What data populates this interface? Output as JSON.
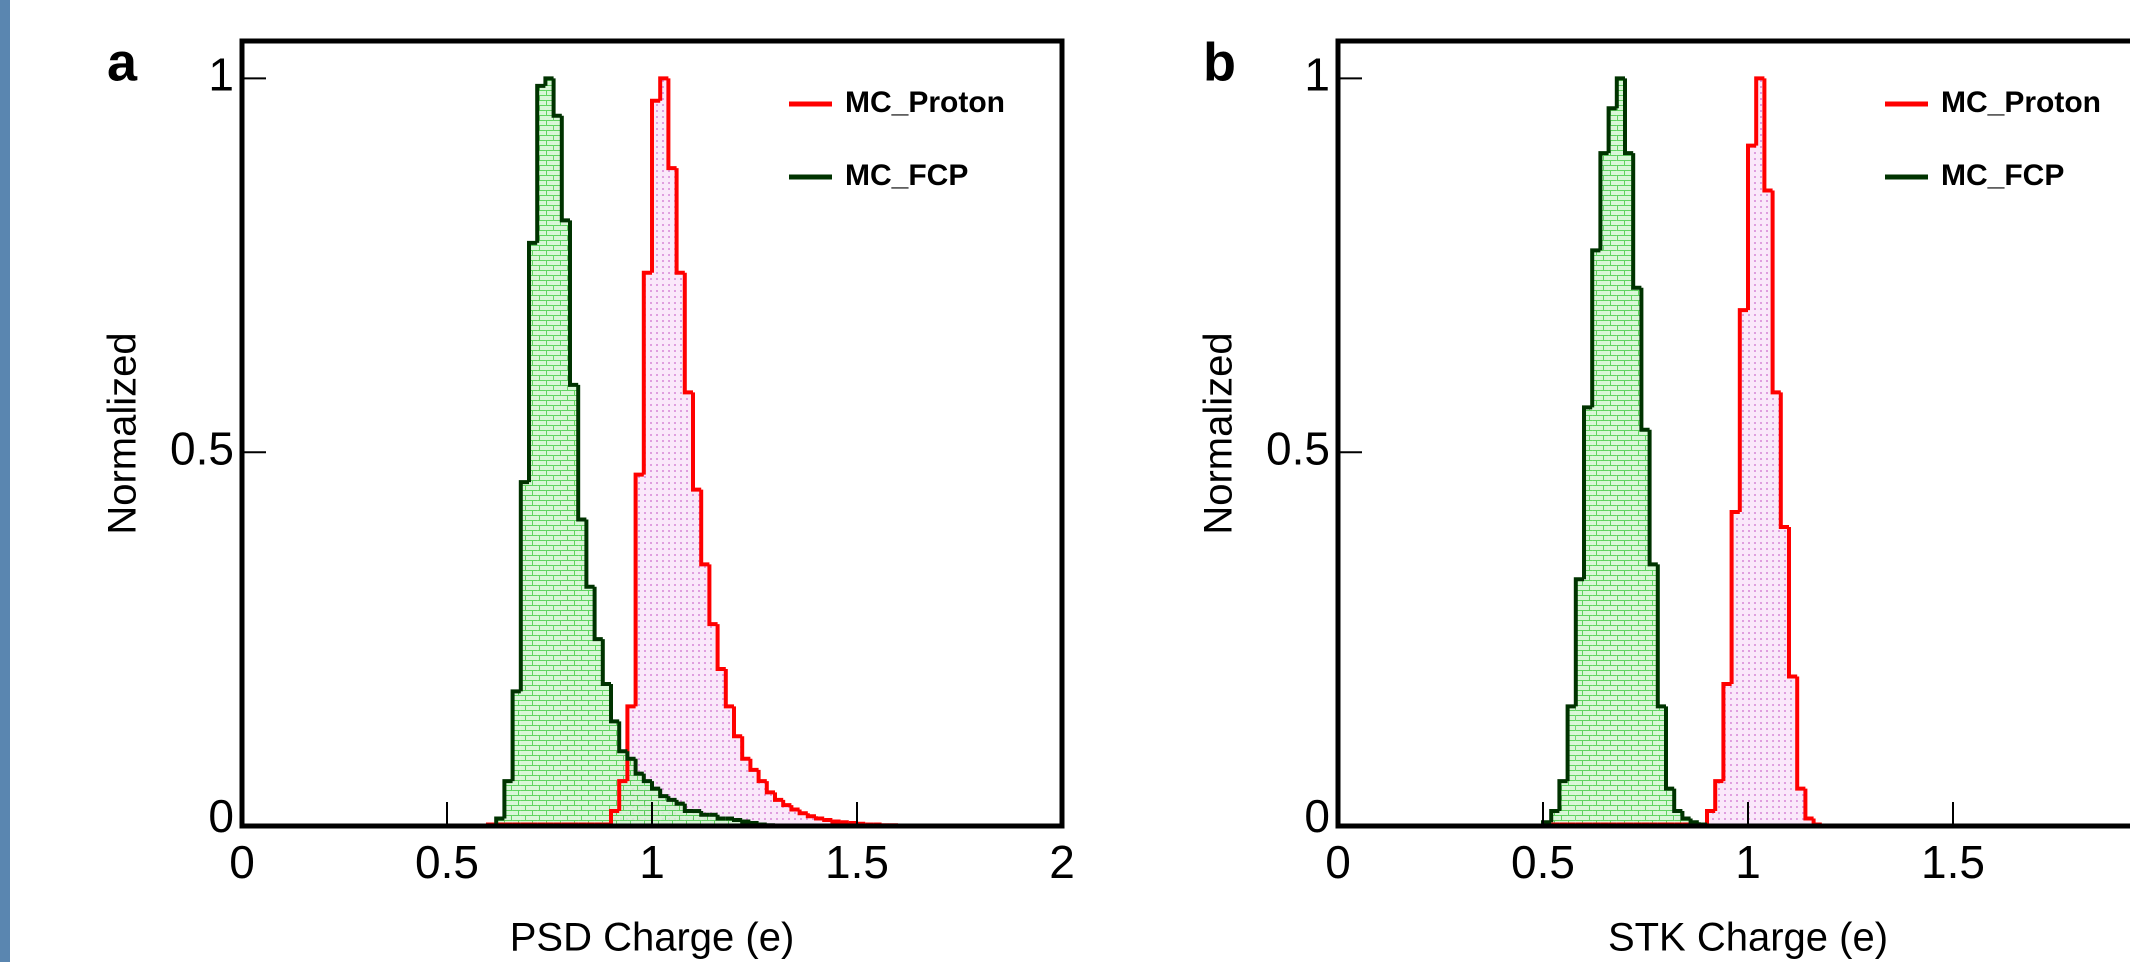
{
  "chart_data": [
    {
      "type": "histogram",
      "panel_label": "a",
      "xlabel": "PSD Charge (e)",
      "ylabel": "Normalized",
      "bins": [
        0,
        0.6,
        0.62,
        0.64,
        0.66,
        0.68,
        0.7,
        0.72,
        0.74,
        0.76,
        0.78,
        0.8,
        0.82,
        0.84,
        0.86,
        0.88,
        0.9,
        0.92,
        0.94,
        0.96,
        0.98,
        1.0,
        1.02,
        1.04,
        1.06,
        1.08,
        1.1,
        1.12,
        1.14,
        1.16,
        1.18,
        1.2,
        1.22,
        1.24,
        1.26,
        1.28,
        1.3,
        1.32,
        1.34,
        1.36,
        1.38,
        1.4,
        1.42,
        1.44,
        1.46,
        1.48,
        1.5,
        1.52,
        1.54,
        1.56,
        1.58,
        1.6,
        1.62,
        1.64,
        1.66,
        1.68,
        1.7,
        2
      ],
      "series": [
        {
          "name": "MC_Proton",
          "color": "#ff0000",
          "values": [
            0,
            0.002,
            0.002,
            0.002,
            0.002,
            0.002,
            0.002,
            0.002,
            0.002,
            0.002,
            0.002,
            0.002,
            0.002,
            0.002,
            0.002,
            0.002,
            0.02,
            0.06,
            0.16,
            0.47,
            0.74,
            0.97,
            1,
            0.88,
            0.74,
            0.58,
            0.45,
            0.35,
            0.27,
            0.21,
            0.16,
            0.12,
            0.09,
            0.075,
            0.06,
            0.045,
            0.035,
            0.028,
            0.022,
            0.017,
            0.013,
            0.01,
            0.008,
            0.006,
            0.005,
            0.004,
            0.003,
            0.002,
            0.002,
            0.001,
            0.001,
            0,
            0,
            0,
            0,
            0,
            0
          ]
        },
        {
          "name": "MC_FCP",
          "color": "#003300",
          "values": [
            0,
            0,
            0.01,
            0.06,
            0.18,
            0.46,
            0.78,
            0.99,
            1,
            0.95,
            0.81,
            0.59,
            0.41,
            0.32,
            0.25,
            0.19,
            0.14,
            0.1,
            0.09,
            0.07,
            0.06,
            0.05,
            0.04,
            0.035,
            0.03,
            0.02,
            0.02,
            0.015,
            0.015,
            0.01,
            0.01,
            0.008,
            0.006,
            0.004,
            0.002,
            0.001,
            0,
            0,
            0,
            0,
            0,
            0,
            0,
            0,
            0,
            0,
            0,
            0,
            0,
            0,
            0,
            0,
            0,
            0,
            0,
            0,
            0
          ]
        }
      ],
      "xlim": [
        0,
        2
      ],
      "ylim": [
        0,
        1.05
      ],
      "xticks": [
        0,
        0.5,
        1,
        1.5,
        2
      ],
      "yticks": [
        0,
        0.5,
        1
      ],
      "legend": "upper right"
    },
    {
      "type": "histogram",
      "panel_label": "b",
      "xlabel": "STK Charge (e)",
      "ylabel": "Normalized",
      "bins": [
        0,
        0.5,
        0.52,
        0.54,
        0.56,
        0.58,
        0.6,
        0.62,
        0.64,
        0.66,
        0.68,
        0.7,
        0.72,
        0.74,
        0.76,
        0.78,
        0.8,
        0.82,
        0.84,
        0.86,
        0.88,
        0.9,
        0.92,
        0.94,
        0.96,
        0.98,
        1.0,
        1.02,
        1.04,
        1.06,
        1.08,
        1.1,
        1.12,
        1.14,
        1.16,
        1.18,
        1.2,
        2
      ],
      "series": [
        {
          "name": "MC_Proton",
          "color": "#ff0000",
          "values": [
            0,
            0.002,
            0.002,
            0.002,
            0.002,
            0.002,
            0.002,
            0.002,
            0.002,
            0.002,
            0.002,
            0.002,
            0.002,
            0.002,
            0.002,
            0.002,
            0.002,
            0.002,
            0.002,
            0.002,
            0.002,
            0.02,
            0.06,
            0.19,
            0.42,
            0.69,
            0.91,
            1,
            0.85,
            0.58,
            0.4,
            0.2,
            0.05,
            0.01,
            0.002,
            0,
            0
          ]
        },
        {
          "name": "MC_FCP",
          "color": "#003300",
          "values": [
            0,
            0.005,
            0.02,
            0.06,
            0.16,
            0.33,
            0.56,
            0.77,
            0.9,
            0.96,
            1,
            0.9,
            0.72,
            0.53,
            0.35,
            0.16,
            0.05,
            0.02,
            0.01,
            0.005,
            0.002,
            0,
            0,
            0,
            0,
            0,
            0,
            0,
            0,
            0,
            0,
            0,
            0,
            0,
            0,
            0,
            0
          ]
        }
      ],
      "xlim": [
        0,
        2
      ],
      "ylim": [
        0,
        1.05
      ],
      "xticks": [
        0,
        0.5,
        1,
        1.5
      ],
      "yticks": [
        0,
        0.5,
        1
      ],
      "legend": "upper right"
    }
  ]
}
